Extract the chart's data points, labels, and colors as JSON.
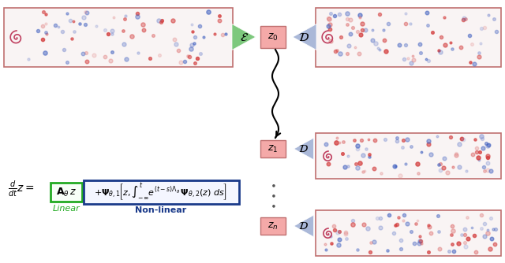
{
  "fig_width": 6.4,
  "fig_height": 3.34,
  "dpi": 100,
  "bg_color": "#ffffff",
  "encoder_color": "#7dc87d",
  "decoder_color": "#aab8d8",
  "z_box_color": "#f4a9a8",
  "green_box_color": "#22aa22",
  "blue_box_color": "#1a3a8a",
  "data_box_border": "#c0706a",
  "encoder_label": "$\\mathcal{E}$",
  "decoder_label": "$\\mathcal{D}$",
  "z0_label": "$z_0$",
  "z1_label": "$z_1$",
  "zn_label": "$z_n$",
  "linear_label": "Linear",
  "nonlinear_label": "Non-linear",
  "equation": "$\\frac{d}{dt}z = $",
  "linear_term": "$\\mathbf{A}_{\\theta} \\, z$",
  "nonlinear_term": "$+\\mathbf{\\Psi}_{\\theta,1}\\left[z, \\int_{-\\infty}^{t} e^{(t-s)\\Lambda_\\theta} \\, \\mathbf{\\Psi}_{\\theta,2}(z) \\; ds\\right]$",
  "dots": [
    "$\\bullet$",
    "$\\bullet$",
    "$\\bullet$",
    "$\\bullet$"
  ]
}
